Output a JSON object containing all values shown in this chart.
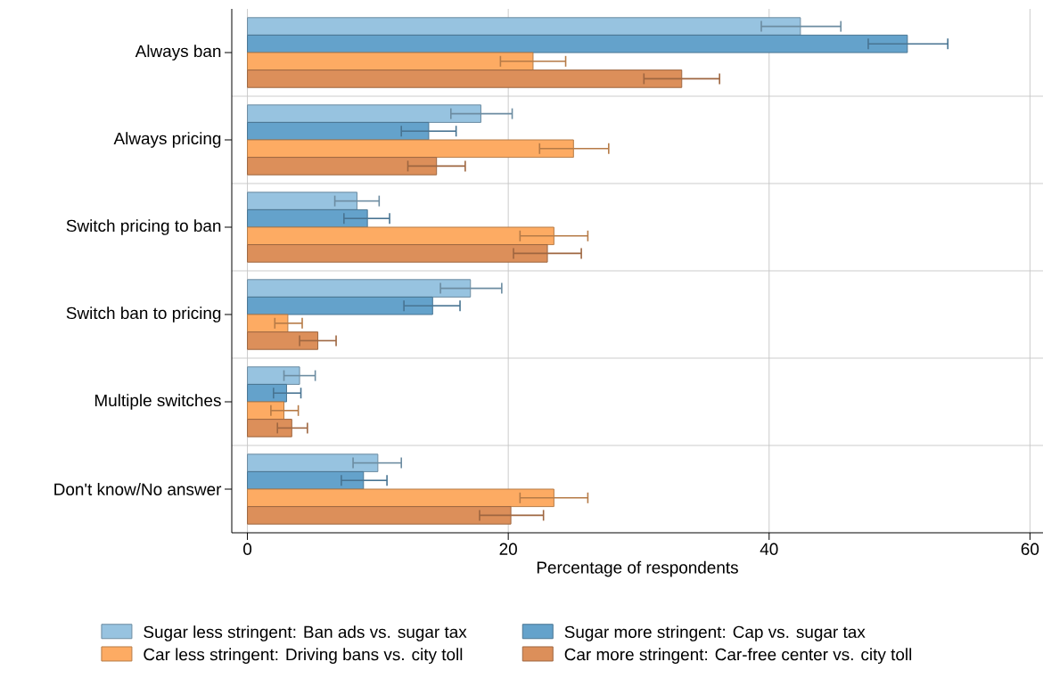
{
  "chart_data": {
    "type": "bar",
    "orientation": "horizontal",
    "xlabel": "Percentage of respondents",
    "categories": [
      "Always ban",
      "Always pricing",
      "Switch pricing to ban",
      "Switch ban to pricing",
      "Multiple switches",
      "Don't know/No answer"
    ],
    "series": [
      {
        "name": "Sugar less stringent: Ban ads vs. sugar tax",
        "color": "#97c3e0",
        "values": [
          42.4,
          17.9,
          8.4,
          17.1,
          4.0,
          10.0
        ],
        "errors": [
          [
            39.4,
            45.5
          ],
          [
            15.6,
            20.3
          ],
          [
            6.7,
            10.1
          ],
          [
            14.8,
            19.5
          ],
          [
            2.8,
            5.2
          ],
          [
            8.1,
            11.8
          ]
        ]
      },
      {
        "name": "Sugar more stringent: Cap vs. sugar tax",
        "color": "#64a2cb",
        "values": [
          50.6,
          13.9,
          9.2,
          14.2,
          3.0,
          8.9
        ],
        "errors": [
          [
            47.6,
            53.7
          ],
          [
            11.8,
            16.0
          ],
          [
            7.4,
            10.9
          ],
          [
            12.0,
            16.3
          ],
          [
            2.0,
            4.1
          ],
          [
            7.2,
            10.7
          ]
        ]
      },
      {
        "name": "Car less stringent: Driving bans vs. city toll",
        "color": "#fdab63",
        "values": [
          21.9,
          25.0,
          23.5,
          3.1,
          2.8,
          23.5
        ],
        "errors": [
          [
            19.4,
            24.4
          ],
          [
            22.4,
            27.7
          ],
          [
            20.9,
            26.1
          ],
          [
            2.1,
            4.2
          ],
          [
            1.8,
            3.9
          ],
          [
            20.9,
            26.1
          ]
        ]
      },
      {
        "name": "Car more stringent: Car-free center vs. city toll",
        "color": "#dc8f5a",
        "values": [
          33.3,
          14.5,
          23.0,
          5.4,
          3.4,
          20.2
        ],
        "errors": [
          [
            30.4,
            36.2
          ],
          [
            12.3,
            16.7
          ],
          [
            20.4,
            25.6
          ],
          [
            4.0,
            6.8
          ],
          [
            2.3,
            4.6
          ],
          [
            17.8,
            22.7
          ]
        ]
      }
    ],
    "xlim": [
      -1.2,
      61
    ],
    "xticks": [
      0,
      20,
      40,
      60
    ],
    "grid": true,
    "legend": "bottom"
  }
}
